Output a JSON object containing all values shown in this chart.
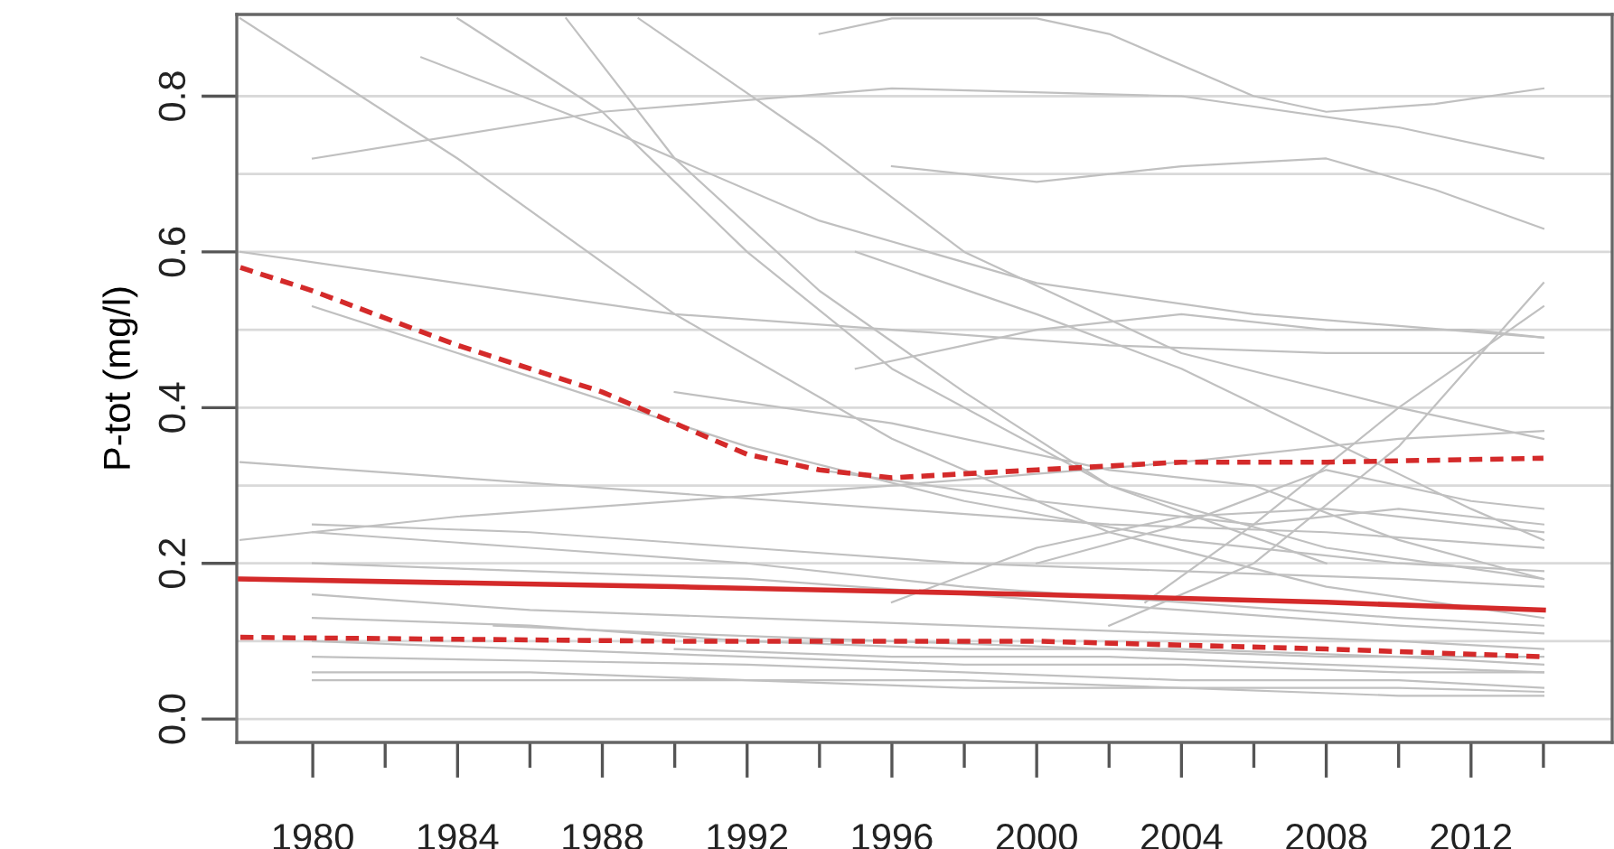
{
  "chart_data": {
    "type": "line",
    "ylabel": "P-tot (mg/l)",
    "xlim": [
      1977.9,
      2015.9
    ],
    "ylim": [
      -0.03,
      0.905
    ],
    "xticks": [
      1980,
      {
        "value": 1982,
        "label": null
      },
      1984,
      {
        "value": 1986,
        "label": null
      },
      1988,
      {
        "value": 1990,
        "label": null
      },
      1992,
      {
        "value": 1994,
        "label": null
      },
      1996,
      {
        "value": 1998,
        "label": null
      },
      2000,
      {
        "value": 2002,
        "label": null
      },
      2004,
      {
        "value": 2006,
        "label": null
      },
      2008,
      {
        "value": 2010,
        "label": null
      },
      2012,
      {
        "value": 2014,
        "label": null
      }
    ],
    "yticks": [
      {
        "value": 0.0,
        "label": "0.0"
      },
      0.2,
      0.4,
      0.6,
      0.8
    ],
    "grid": "y",
    "ref_lines": [
      {
        "axis": "y",
        "value": 0.1,
        "color": "#d9d9d9"
      },
      {
        "axis": "y",
        "value": 0.3,
        "color": "#d9d9d9"
      },
      {
        "axis": "y",
        "value": 0.5,
        "color": "#d9d9d9"
      },
      {
        "axis": "y",
        "value": 0.7,
        "color": "#d9d9d9"
      }
    ],
    "legend": false,
    "series": [
      {
        "color": "#c0c0c0",
        "x": [
          1978,
          1984,
          1990,
          1996,
          2002,
          2008,
          2014
        ],
        "values": [
          0.9,
          0.72,
          0.52,
          0.36,
          0.24,
          0.17,
          0.13
        ]
      },
      {
        "color": "#c0c0c0",
        "x": [
          1980,
          1988,
          1996,
          2004,
          2010,
          2014
        ],
        "values": [
          0.72,
          0.78,
          0.81,
          0.8,
          0.76,
          0.72
        ]
      },
      {
        "color": "#c0c0c0",
        "x": [
          1984,
          1988,
          1992,
          1996,
          2002,
          2008,
          2014
        ],
        "values": [
          0.9,
          0.78,
          0.6,
          0.45,
          0.3,
          0.22,
          0.18
        ]
      },
      {
        "color": "#c0c0c0",
        "x": [
          1987,
          1990,
          1994,
          1998,
          2002,
          2008
        ],
        "values": [
          0.9,
          0.72,
          0.55,
          0.42,
          0.3,
          0.2
        ]
      },
      {
        "color": "#c0c0c0",
        "x": [
          1989,
          1994,
          1998,
          2004,
          2010,
          2014
        ],
        "values": [
          0.9,
          0.74,
          0.6,
          0.47,
          0.4,
          0.36
        ]
      },
      {
        "color": "#c0c0c0",
        "x": [
          1983,
          1988,
          1994,
          2000,
          2006,
          2014
        ],
        "values": [
          0.85,
          0.76,
          0.64,
          0.56,
          0.52,
          0.49
        ]
      },
      {
        "color": "#c0c0c0",
        "x": [
          1994,
          1996,
          2000,
          2002,
          2006,
          2008,
          2011,
          2014
        ],
        "values": [
          0.88,
          0.9,
          0.9,
          0.88,
          0.8,
          0.78,
          0.79,
          0.81
        ]
      },
      {
        "color": "#c0c0c0",
        "x": [
          1996,
          2000,
          2004,
          2008,
          2011,
          2014
        ],
        "values": [
          0.71,
          0.69,
          0.71,
          0.72,
          0.68,
          0.63
        ]
      },
      {
        "color": "#c0c0c0",
        "x": [
          1978,
          1984,
          1990,
          1996,
          2002,
          2008,
          2014
        ],
        "values": [
          0.6,
          0.56,
          0.52,
          0.5,
          0.48,
          0.47,
          0.47
        ]
      },
      {
        "color": "#c0c0c0",
        "x": [
          1980,
          1986,
          1992,
          1998,
          2004,
          2010,
          2014
        ],
        "values": [
          0.53,
          0.44,
          0.35,
          0.28,
          0.23,
          0.2,
          0.19
        ]
      },
      {
        "color": "#c0c0c0",
        "x": [
          1995,
          2000,
          2004,
          2008,
          2012,
          2014
        ],
        "values": [
          0.6,
          0.52,
          0.45,
          0.36,
          0.27,
          0.23
        ]
      },
      {
        "color": "#c0c0c0",
        "x": [
          1995,
          2000,
          2004,
          2008,
          2012,
          2014
        ],
        "values": [
          0.45,
          0.5,
          0.52,
          0.5,
          0.5,
          0.49
        ]
      },
      {
        "color": "#c0c0c0",
        "x": [
          2002,
          2006,
          2010,
          2014
        ],
        "values": [
          0.12,
          0.2,
          0.35,
          0.56
        ]
      },
      {
        "color": "#c0c0c0",
        "x": [
          2003,
          2006,
          2010,
          2014
        ],
        "values": [
          0.15,
          0.25,
          0.4,
          0.53
        ]
      },
      {
        "color": "#c0c0c0",
        "x": [
          1978,
          1984,
          1990,
          1996,
          2002,
          2008,
          2014
        ],
        "values": [
          0.33,
          0.31,
          0.29,
          0.27,
          0.25,
          0.24,
          0.22
        ]
      },
      {
        "color": "#c0c0c0",
        "x": [
          1978,
          1984,
          1990,
          1996,
          2004,
          2010,
          2014
        ],
        "values": [
          0.23,
          0.26,
          0.28,
          0.3,
          0.33,
          0.36,
          0.37
        ]
      },
      {
        "color": "#c0c0c0",
        "x": [
          1980,
          1986,
          1992,
          1998,
          2004,
          2010,
          2014
        ],
        "values": [
          0.25,
          0.24,
          0.22,
          0.2,
          0.19,
          0.18,
          0.17
        ]
      },
      {
        "color": "#c0c0c0",
        "x": [
          1980,
          1986,
          1992,
          1998,
          2004,
          2010,
          2014
        ],
        "values": [
          0.24,
          0.22,
          0.2,
          0.17,
          0.15,
          0.13,
          0.12
        ]
      },
      {
        "color": "#c0c0c0",
        "x": [
          1980,
          1986,
          1992,
          1998,
          2004,
          2010,
          2014
        ],
        "values": [
          0.2,
          0.19,
          0.18,
          0.16,
          0.14,
          0.12,
          0.11
        ]
      },
      {
        "color": "#c0c0c0",
        "x": [
          1980,
          1986,
          1992,
          1998,
          2004,
          2010,
          2014
        ],
        "values": [
          0.16,
          0.14,
          0.13,
          0.12,
          0.11,
          0.1,
          0.09
        ]
      },
      {
        "color": "#c0c0c0",
        "x": [
          1980,
          1986,
          1992,
          1998,
          2004,
          2010,
          2014
        ],
        "values": [
          0.13,
          0.12,
          0.1,
          0.09,
          0.09,
          0.08,
          0.07
        ]
      },
      {
        "color": "#c0c0c0",
        "x": [
          1980,
          1986,
          1992,
          1998,
          2004,
          2010,
          2014
        ],
        "values": [
          0.1,
          0.09,
          0.08,
          0.07,
          0.07,
          0.06,
          0.06
        ]
      },
      {
        "color": "#c0c0c0",
        "x": [
          1980,
          1986,
          1992,
          1998,
          2004,
          2010,
          2014
        ],
        "values": [
          0.08,
          0.075,
          0.07,
          0.06,
          0.05,
          0.05,
          0.04
        ]
      },
      {
        "color": "#c0c0c0",
        "x": [
          1980,
          1986,
          1992,
          1998,
          2004,
          2010,
          2014
        ],
        "values": [
          0.06,
          0.06,
          0.05,
          0.05,
          0.04,
          0.04,
          0.035
        ]
      },
      {
        "color": "#c0c0c0",
        "x": [
          1980,
          1986,
          1992,
          1998,
          2004,
          2010,
          2014
        ],
        "values": [
          0.05,
          0.05,
          0.05,
          0.04,
          0.04,
          0.03,
          0.03
        ]
      },
      {
        "color": "#c0c0c0",
        "x": [
          1985,
          1990,
          1996,
          2002,
          2008,
          2014
        ],
        "values": [
          0.12,
          0.11,
          0.1,
          0.09,
          0.08,
          0.08
        ]
      },
      {
        "color": "#c0c0c0",
        "x": [
          1990,
          1996,
          2002,
          2008,
          2014
        ],
        "values": [
          0.09,
          0.08,
          0.08,
          0.07,
          0.06
        ]
      },
      {
        "color": "#c0c0c0",
        "x": [
          1994,
          2000,
          2006,
          2010,
          2014
        ],
        "values": [
          0.32,
          0.28,
          0.25,
          0.27,
          0.25
        ]
      },
      {
        "color": "#c0c0c0",
        "x": [
          1996,
          2000,
          2004,
          2008,
          2012,
          2014
        ],
        "values": [
          0.15,
          0.22,
          0.26,
          0.27,
          0.25,
          0.24
        ]
      },
      {
        "color": "#c0c0c0",
        "x": [
          2000,
          2004,
          2008,
          2012,
          2014
        ],
        "values": [
          0.2,
          0.25,
          0.32,
          0.28,
          0.27
        ]
      },
      {
        "color": "#c0c0c0",
        "x": [
          1990,
          1996,
          2002,
          2006,
          2010,
          2014
        ],
        "values": [
          0.42,
          0.38,
          0.32,
          0.3,
          0.23,
          0.18
        ]
      },
      {
        "color": "#d42a2a",
        "line_style": "dashed",
        "x": [
          1978,
          1980,
          1984,
          1988,
          1992,
          1994,
          1996,
          2000,
          2004,
          2008,
          2014
        ],
        "values": [
          0.58,
          0.55,
          0.48,
          0.42,
          0.34,
          0.32,
          0.31,
          0.32,
          0.33,
          0.33,
          0.335
        ]
      },
      {
        "color": "#d42a2a",
        "line_style": "dashed",
        "x": [
          1978,
          1990,
          2000,
          2008,
          2014
        ],
        "values": [
          0.105,
          0.1,
          0.1,
          0.09,
          0.08
        ]
      },
      {
        "color": "#d42a2a",
        "x": [
          1978,
          1990,
          2000,
          2008,
          2014
        ],
        "values": [
          0.18,
          0.17,
          0.16,
          0.15,
          0.14
        ]
      }
    ]
  }
}
